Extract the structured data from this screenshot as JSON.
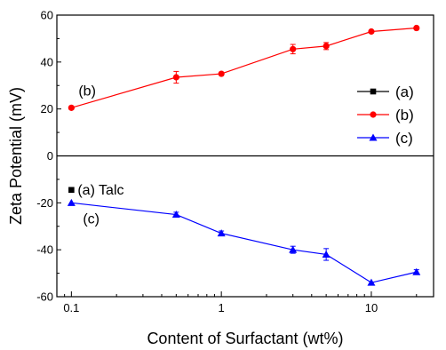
{
  "chart_data": {
    "type": "line",
    "xlabel": "Content of Surfactant (wt%)",
    "ylabel": "Zeta Potential (mV)",
    "xscale": "log",
    "xlim": [
      0.08,
      26
    ],
    "ylim": [
      -60,
      60
    ],
    "x_ticks": [
      0.1,
      1,
      10
    ],
    "x_tick_labels": [
      "0.1",
      "1",
      "10"
    ],
    "y_ticks": [
      -60,
      -40,
      -20,
      0,
      20,
      40,
      60
    ],
    "y_tick_labels": [
      "-60",
      "-40",
      "-20",
      "0",
      "20",
      "40",
      "60"
    ],
    "zero_line": true,
    "grid": false,
    "legend_position": "right, above zero line",
    "series": [
      {
        "name": "(a)",
        "color": "#000000",
        "marker": "square",
        "connect": false,
        "x": [
          0.1
        ],
        "y": [
          -14.5
        ],
        "err": [
          0
        ]
      },
      {
        "name": "(b)",
        "color": "#ff0000",
        "marker": "circle",
        "connect": true,
        "x": [
          0.1,
          0.5,
          1,
          3,
          5,
          10,
          20
        ],
        "y": [
          20.5,
          33.5,
          35,
          45.5,
          46.8,
          53,
          54.5
        ],
        "err": [
          0,
          2.5,
          0,
          2,
          1.5,
          0,
          0
        ]
      },
      {
        "name": "(c)",
        "color": "#0000ff",
        "marker": "triangle",
        "connect": true,
        "x": [
          0.1,
          0.5,
          1,
          3,
          5,
          10,
          20
        ],
        "y": [
          -20,
          -25,
          -33,
          -40,
          -42,
          -54,
          -49.5
        ],
        "err": [
          0,
          1,
          1,
          1.5,
          2.5,
          0,
          1
        ]
      }
    ],
    "annotations": [
      {
        "text": "(b)",
        "x": 0.1,
        "y": 20.5
      },
      {
        "text": "(a) Talc",
        "x": 0.1,
        "y": -14.5
      },
      {
        "text": "(c)",
        "x": 0.1,
        "y": -20
      }
    ]
  }
}
